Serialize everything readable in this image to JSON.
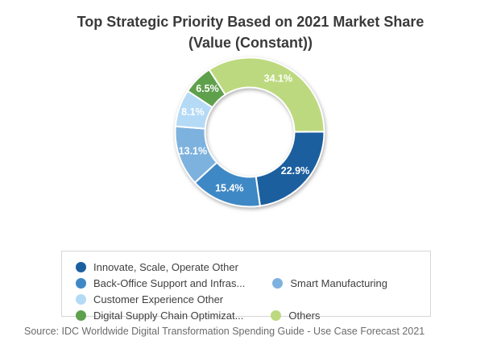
{
  "title": {
    "line1": "Top Strategic Priority Based on 2021 Market Share",
    "line2": "(Value (Constant))"
  },
  "chart_data": {
    "type": "pie",
    "subtype": "donut",
    "title": "Top Strategic Priority Based on 2021 Market Share (Value (Constant))",
    "start_angle_deg": -33,
    "inner_radius_ratio": 0.6,
    "data_label_color": "#ffffff",
    "legend_position": "bottom",
    "slices": [
      {
        "label": "Others",
        "value": 34.1,
        "display": "34.1%",
        "color": "#bdd97f"
      },
      {
        "label": "Innovate, Scale, Operate Other",
        "value": 22.9,
        "display": "22.9%",
        "color": "#1c5f9f"
      },
      {
        "label": "Back-Office Support and Infras...",
        "value": 15.4,
        "display": "15.4%",
        "color": "#3e88c5"
      },
      {
        "label": "Smart Manufacturing",
        "value": 13.1,
        "display": "13.1%",
        "color": "#7db2df"
      },
      {
        "label": "Customer Experience Other",
        "value": 8.1,
        "display": "8.1%",
        "color": "#b4daf5"
      },
      {
        "label": "Digital Supply Chain Optimizat...",
        "value": 6.5,
        "display": "6.5%",
        "color": "#5fa04c"
      }
    ]
  },
  "legend": {
    "items": [
      {
        "label": "Innovate, Scale, Operate Other",
        "color": "#1c5f9f"
      },
      {
        "label": "Back-Office Support and Infras...",
        "color": "#3e88c5"
      },
      {
        "label": "Smart Manufacturing",
        "color": "#7db2df"
      },
      {
        "label": "Customer Experience Other",
        "color": "#b4daf5"
      },
      {
        "label": "Digital Supply Chain Optimizat...",
        "color": "#5fa04c"
      },
      {
        "label": "Others",
        "color": "#bdd97f"
      }
    ]
  },
  "source": "Source: IDC Worldwide Digital Transformation Spending Guide - Use Case Forecast 2021"
}
